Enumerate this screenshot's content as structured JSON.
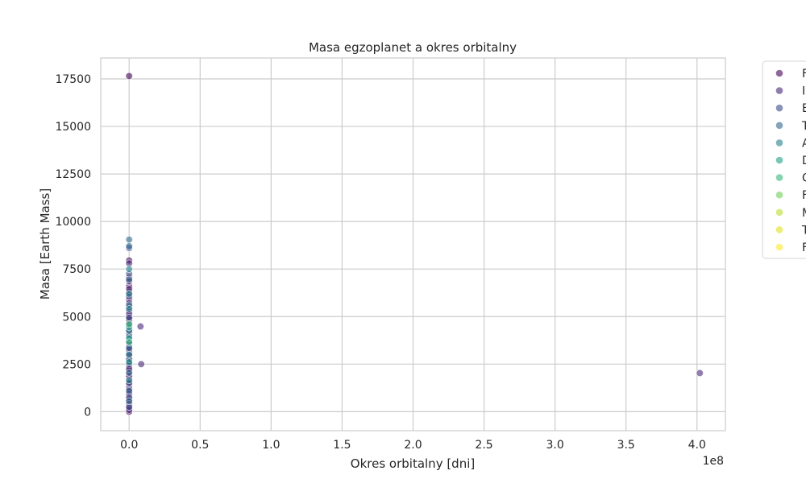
{
  "chart_data": {
    "type": "scatter",
    "title": "Masa egzoplanet a okres orbitalny",
    "xlabel": "Okres orbitalny [dni]",
    "ylabel": "Masa [Earth Mass]",
    "x_offset_label": "1e8",
    "x_scale": 100000000,
    "xlim": [
      -20000000,
      420000000
    ],
    "ylim": [
      -1000,
      18600
    ],
    "x_ticks": [
      0,
      50000000,
      100000000,
      150000000,
      200000000,
      250000000,
      300000000,
      350000000,
      400000000
    ],
    "x_tick_labels": [
      "0.0",
      "0.5",
      "1.0",
      "1.5",
      "2.0",
      "2.5",
      "3.0",
      "3.5",
      "4.0"
    ],
    "y_ticks": [
      0,
      2500,
      5000,
      7500,
      10000,
      12500,
      15000,
      17500
    ],
    "y_tick_labels": [
      "0",
      "2500",
      "5000",
      "7500",
      "10000",
      "12500",
      "15000",
      "17500"
    ],
    "grid": true,
    "legend_placement": "outside-right",
    "series": [
      {
        "name": "F",
        "color": "#440154",
        "points": [
          [
            0,
            17650
          ],
          [
            0,
            7950
          ],
          [
            0,
            7050
          ],
          [
            0,
            6600
          ],
          [
            0,
            6300
          ],
          [
            0,
            5900
          ],
          [
            0,
            5300
          ],
          [
            0,
            5000
          ],
          [
            0,
            4700
          ],
          [
            0,
            4150
          ],
          [
            0,
            3550
          ],
          [
            0,
            3100
          ],
          [
            0,
            2800
          ],
          [
            0,
            2400
          ],
          [
            0,
            2150
          ],
          [
            0,
            1950
          ],
          [
            0,
            1700
          ],
          [
            0,
            1350
          ],
          [
            0,
            1050
          ],
          [
            0,
            800
          ],
          [
            0,
            500
          ],
          [
            0,
            300
          ],
          [
            0,
            150
          ],
          [
            0,
            50
          ],
          [
            0,
            0
          ]
        ]
      },
      {
        "name": "I",
        "color": "#482878",
        "points": [
          [
            0,
            7800
          ],
          [
            0,
            6850
          ],
          [
            0,
            6450
          ],
          [
            0,
            6150
          ],
          [
            0,
            5700
          ],
          [
            0,
            5150
          ],
          [
            0,
            4850
          ],
          [
            0,
            4550
          ],
          [
            0,
            4300
          ],
          [
            0,
            4050
          ],
          [
            0,
            3400
          ],
          [
            0,
            3250
          ],
          [
            0,
            2950
          ],
          [
            0,
            2650
          ],
          [
            0,
            2500
          ],
          [
            0,
            2250
          ],
          [
            0,
            1850
          ],
          [
            0,
            1550
          ],
          [
            0,
            1200
          ],
          [
            0,
            950
          ],
          [
            0,
            650
          ],
          [
            0,
            400
          ],
          [
            0,
            200
          ],
          [
            0,
            100
          ],
          [
            8000000,
            4480
          ],
          [
            8500000,
            2500
          ],
          [
            402000000,
            2030
          ]
        ]
      },
      {
        "name": "E",
        "color": "#3e4989",
        "points": [
          [
            0,
            8600
          ],
          [
            0,
            7250
          ],
          [
            0,
            6050
          ],
          [
            0,
            5500
          ],
          [
            0,
            4950
          ],
          [
            0,
            3700
          ],
          [
            0,
            2750
          ],
          [
            0,
            1500
          ],
          [
            0,
            750
          ],
          [
            0,
            250
          ]
        ]
      },
      {
        "name": "T",
        "color": "#31688e",
        "points": [
          [
            0,
            9050
          ],
          [
            0,
            8700
          ],
          [
            0,
            6950
          ],
          [
            0,
            5600
          ],
          [
            0,
            3950
          ],
          [
            0,
            3350
          ],
          [
            0,
            2050
          ],
          [
            0,
            1100
          ],
          [
            0,
            550
          ]
        ]
      },
      {
        "name": "A",
        "color": "#26828e",
        "points": [
          [
            0,
            7500
          ],
          [
            0,
            6200
          ],
          [
            0,
            5400
          ],
          [
            0,
            4250
          ],
          [
            0,
            3000
          ],
          [
            0,
            1650
          ]
        ]
      },
      {
        "name": "D",
        "color": "#1f9e89",
        "points": [
          [
            0,
            4450
          ],
          [
            0,
            3850
          ],
          [
            0,
            2600
          ]
        ]
      },
      {
        "name": "C",
        "color": "#35b779",
        "points": [
          [
            0,
            4600
          ],
          [
            0,
            3650
          ]
        ]
      },
      {
        "name": "F",
        "color": "#6ece58",
        "points": []
      },
      {
        "name": "M",
        "color": "#b5de2b",
        "points": []
      },
      {
        "name": "T",
        "color": "#dde318",
        "points": []
      },
      {
        "name": "F",
        "color": "#fde725",
        "points": []
      }
    ]
  }
}
